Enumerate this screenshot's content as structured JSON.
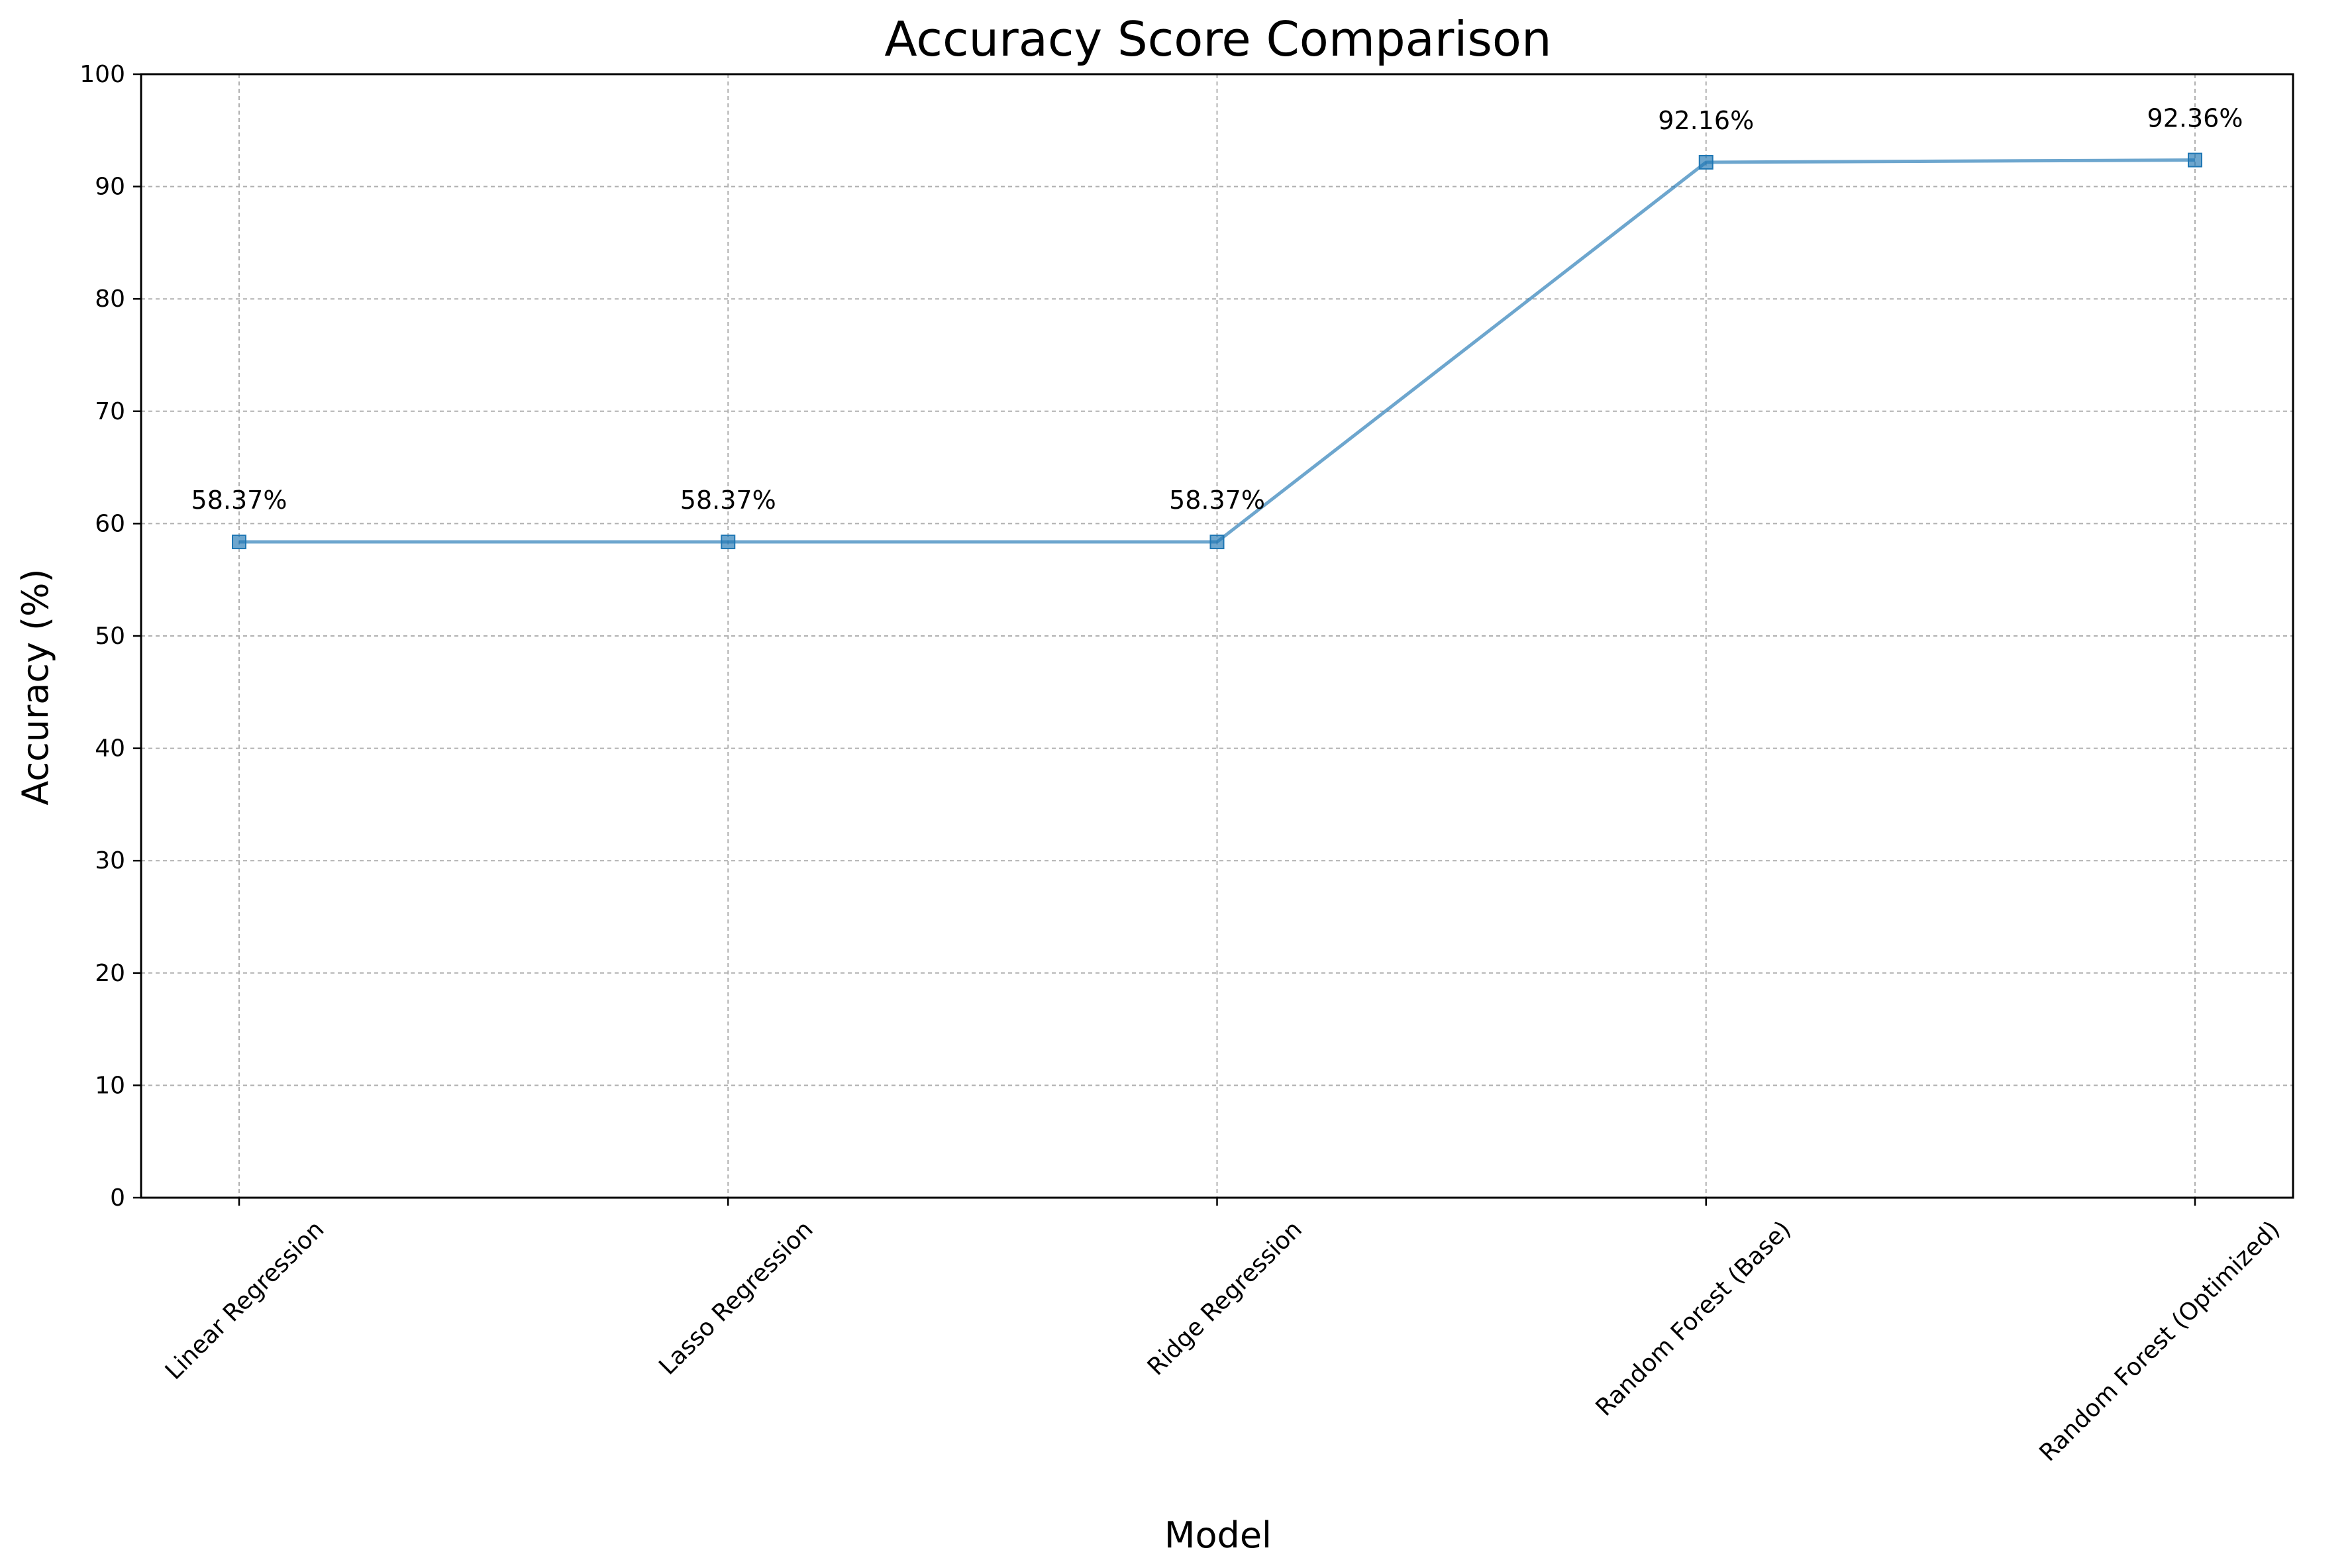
{
  "chart_data": {
    "type": "line",
    "title": "Accuracy Score Comparison",
    "xlabel": "Model",
    "ylabel": "Accuracy (%)",
    "categories": [
      "Linear Regression",
      "Lasso Regression",
      "Ridge Regression",
      "Random Forest (Base)",
      "Random Forest (Optimized)"
    ],
    "values": [
      58.37,
      58.37,
      58.37,
      92.16,
      92.36
    ],
    "data_labels": [
      "58.37%",
      "58.37%",
      "58.37%",
      "92.16%",
      "92.36%"
    ],
    "ylim": [
      0,
      100
    ],
    "yticks": [
      0,
      10,
      20,
      30,
      40,
      50,
      60,
      70,
      80,
      90,
      100
    ],
    "grid": true,
    "marker": "square",
    "line_color": "#1f77b4",
    "x_tick_rotation": "45 degrees"
  }
}
